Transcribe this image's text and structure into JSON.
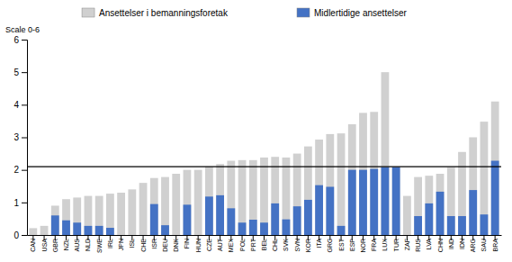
{
  "chart_data": {
    "type": "bar",
    "y_label": "Scale 0-6",
    "categories": [
      "CAN",
      "USA",
      "GBR",
      "NZL",
      "AUS",
      "NLD",
      "SWE",
      "IRL",
      "JPN",
      "ISL",
      "CHE",
      "ISR",
      "DEU",
      "DNK",
      "FIN",
      "HUN",
      "CZE",
      "AUT",
      "MEX",
      "POL",
      "PRT",
      "BEL",
      "CHL",
      "SVK",
      "SVN",
      "KOR",
      "ITA",
      "GRC",
      "EST",
      "ESP",
      "NOR",
      "FRA",
      "LUX",
      "TUR",
      "ZAF",
      "RUS",
      "LVA",
      "CHN",
      "IND",
      "IDN",
      "ARG",
      "SAU",
      "BRA"
    ],
    "series": [
      {
        "name": "Ansettelser i bemanningsforetak",
        "color": "#d0d0d0",
        "values": [
          0.21,
          0.28,
          0.9,
          1.1,
          1.15,
          1.2,
          1.2,
          1.27,
          1.3,
          1.4,
          1.6,
          1.75,
          1.78,
          1.88,
          2.0,
          2.0,
          2.1,
          2.18,
          2.28,
          2.3,
          2.3,
          2.38,
          2.4,
          2.38,
          2.5,
          2.72,
          2.93,
          3.1,
          3.12,
          3.4,
          3.75,
          3.78,
          5.0,
          2.1,
          1.2,
          1.78,
          1.82,
          1.88,
          2.07,
          2.55,
          3.0,
          3.48,
          4.1
        ]
      },
      {
        "name": "Midlertidige ansettelser",
        "color": "#4472c4",
        "values": [
          0.0,
          0.0,
          0.6,
          0.45,
          0.38,
          0.28,
          0.28,
          0.22,
          0.0,
          0.0,
          0.0,
          0.95,
          0.3,
          0.0,
          0.93,
          0.0,
          1.18,
          1.22,
          0.82,
          0.38,
          0.47,
          0.38,
          0.97,
          0.48,
          0.88,
          1.08,
          1.53,
          1.48,
          0.28,
          2.0,
          2.0,
          2.03,
          2.08,
          2.08,
          0.0,
          0.58,
          0.97,
          1.33,
          0.58,
          0.58,
          1.38,
          0.63,
          2.28
        ]
      }
    ],
    "reference_line": 2.1,
    "ylim": [
      0,
      6
    ],
    "yticks": [
      0,
      1,
      2,
      3,
      4,
      5,
      6
    ],
    "legend": "top"
  }
}
